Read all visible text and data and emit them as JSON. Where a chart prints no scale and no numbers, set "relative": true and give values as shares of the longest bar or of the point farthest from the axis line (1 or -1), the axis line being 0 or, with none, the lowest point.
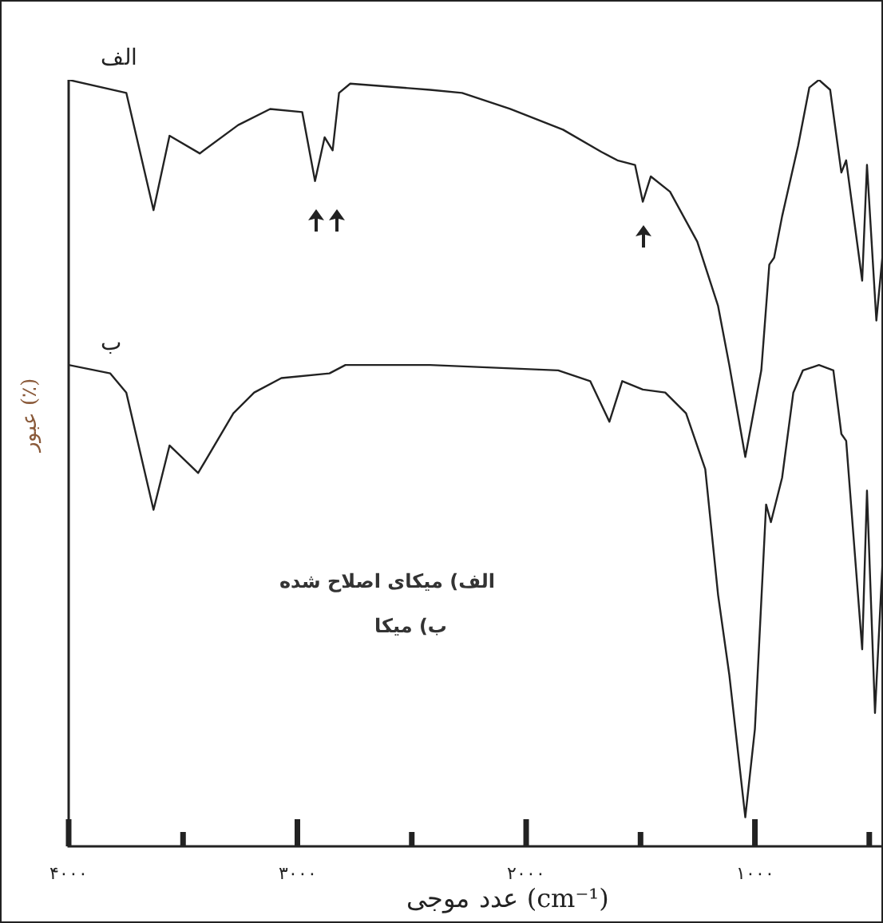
{
  "chart_data": {
    "type": "line",
    "relative": true,
    "xlabel": "عدد موجی (cm⁻¹)",
    "ylabel": "عبور (٪)",
    "xlim": [
      4000,
      440
    ],
    "xticks": [
      {
        "value": 4000,
        "label": "۴۰۰۰"
      },
      {
        "value": 3500,
        "label": null
      },
      {
        "value": 3000,
        "label": "۳۰۰۰"
      },
      {
        "value": 2500,
        "label": null
      },
      {
        "value": 2000,
        "label": "۲۰۰۰"
      },
      {
        "value": 1500,
        "label": null
      },
      {
        "value": 1000,
        "label": "۱۰۰۰"
      },
      {
        "value": 500,
        "label": null
      }
    ],
    "grid": false,
    "legend": false,
    "marker": "none",
    "line_style": "solid",
    "annotations": [
      "الف) میکای اصلاح شده",
      "ب) میکا"
    ],
    "series": [
      {
        "name": "الف",
        "color": "#222222",
        "x": [
          4000,
          3748,
          3629,
          3559,
          3427,
          3259,
          3119,
          2979,
          2923,
          2881,
          2846,
          2818,
          2769,
          2420,
          2280,
          2070,
          1839,
          1671,
          1601,
          1524,
          1490,
          1455,
          1371,
          1252,
          1161,
          1112,
          1042,
          972,
          937,
          916,
          881,
          811,
          762,
          720,
          671,
          622,
          601,
          531,
          510,
          469,
          441
        ],
        "values": [
          1.0,
          0.983,
          0.83,
          0.927,
          0.904,
          0.941,
          0.962,
          0.958,
          0.868,
          0.925,
          0.908,
          0.983,
          0.995,
          0.987,
          0.983,
          0.962,
          0.935,
          0.906,
          0.895,
          0.889,
          0.841,
          0.874,
          0.854,
          0.789,
          0.705,
          0.628,
          0.508,
          0.621,
          0.759,
          0.768,
          0.822,
          0.914,
          0.99,
          1.0,
          0.987,
          0.879,
          0.895,
          0.738,
          0.889,
          0.686,
          0.774
        ]
      },
      {
        "name": "ب",
        "color": "#222222",
        "x": [
          4000,
          3818,
          3748,
          3629,
          3559,
          3434,
          3280,
          3189,
          3070,
          2860,
          2790,
          2420,
          1860,
          1720,
          1636,
          1580,
          1490,
          1392,
          1301,
          1217,
          1161,
          1112,
          1042,
          1000,
          951,
          930,
          881,
          832,
          790,
          720,
          657,
          622,
          601,
          531,
          510,
          475,
          441
        ],
        "values": [
          0.628,
          0.617,
          0.592,
          0.439,
          0.523,
          0.487,
          0.565,
          0.592,
          0.611,
          0.617,
          0.628,
          0.628,
          0.621,
          0.607,
          0.554,
          0.607,
          0.596,
          0.592,
          0.565,
          0.492,
          0.328,
          0.224,
          0.038,
          0.153,
          0.446,
          0.423,
          0.481,
          0.592,
          0.621,
          0.628,
          0.621,
          0.538,
          0.529,
          0.257,
          0.464,
          0.174,
          0.377
        ]
      }
    ]
  }
}
